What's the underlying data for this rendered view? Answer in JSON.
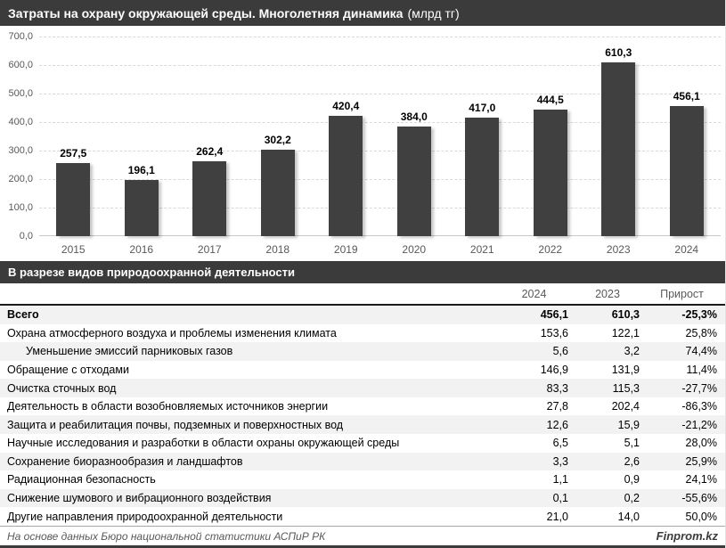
{
  "header": {
    "title_bold": "Затраты на охрану окружающей среды. Многолетняя динамика",
    "title_unit": "(млрд тг)"
  },
  "chart_data": {
    "type": "bar",
    "title": "Затраты на охрану окружающей среды. Многолетняя динамика (млрд тг)",
    "categories": [
      "2015",
      "2016",
      "2017",
      "2018",
      "2019",
      "2020",
      "2021",
      "2022",
      "2023",
      "2024"
    ],
    "values": [
      257.5,
      196.1,
      262.4,
      302.2,
      420.4,
      384.0,
      417.0,
      444.5,
      610.3,
      456.1
    ],
    "value_labels": [
      "257,5",
      "196,1",
      "262,4",
      "302,2",
      "420,4",
      "384,0",
      "417,0",
      "444,5",
      "610,3",
      "456,1"
    ],
    "ylim": [
      0,
      700
    ],
    "ytick_step": 100,
    "ytick_labels_top_to_bottom": [
      "700,0",
      "600,0",
      "500,0",
      "400,0",
      "300,0",
      "200,0",
      "100,0",
      "0,0"
    ],
    "grid": true,
    "legend": "none",
    "xlabel": "",
    "ylabel": ""
  },
  "section2": {
    "title": "В разрезе видов природоохранной деятельности"
  },
  "table": {
    "columns": [
      "2024",
      "2023",
      "Прирост"
    ],
    "rows": [
      {
        "label": "Всего",
        "v2024": "456,1",
        "v2023": "610,3",
        "growth": "-25,3%",
        "bold": true,
        "indent": false
      },
      {
        "label": "Охрана атмосферного воздуха и проблемы изменения климата",
        "v2024": "153,6",
        "v2023": "122,1",
        "growth": "25,8%",
        "bold": false,
        "indent": false
      },
      {
        "label": "Уменьшение эмиссий парниковых газов",
        "v2024": "5,6",
        "v2023": "3,2",
        "growth": "74,4%",
        "bold": false,
        "indent": true
      },
      {
        "label": "Обращение с отходами",
        "v2024": "146,9",
        "v2023": "131,9",
        "growth": "11,4%",
        "bold": false,
        "indent": false
      },
      {
        "label": "Очистка сточных вод",
        "v2024": "83,3",
        "v2023": "115,3",
        "growth": "-27,7%",
        "bold": false,
        "indent": false
      },
      {
        "label": "Деятельность в области возобновляемых источников энергии",
        "v2024": "27,8",
        "v2023": "202,4",
        "growth": "-86,3%",
        "bold": false,
        "indent": false
      },
      {
        "label": "Защита и реабилитация почвы, подземных и поверхностных вод",
        "v2024": "12,6",
        "v2023": "15,9",
        "growth": "-21,2%",
        "bold": false,
        "indent": false
      },
      {
        "label": "Научные исследования и разработки в области охраны окружающей среды",
        "v2024": "6,5",
        "v2023": "5,1",
        "growth": "28,0%",
        "bold": false,
        "indent": false
      },
      {
        "label": "Сохранение биоразнообразия и ландшафтов",
        "v2024": "3,3",
        "v2023": "2,6",
        "growth": "25,9%",
        "bold": false,
        "indent": false
      },
      {
        "label": "Радиационная безопасность",
        "v2024": "1,1",
        "v2023": "0,9",
        "growth": "24,1%",
        "bold": false,
        "indent": false
      },
      {
        "label": "Снижение шумового и вибрационного воздействия",
        "v2024": "0,1",
        "v2023": "0,2",
        "growth": "-55,6%",
        "bold": false,
        "indent": false
      },
      {
        "label": "Другие направления природоохранной деятельности",
        "v2024": "21,0",
        "v2023": "14,0",
        "growth": "50,0%",
        "bold": false,
        "indent": false
      }
    ]
  },
  "footer": {
    "source": "На основе данных Бюро национальной статистики АСПиР РК",
    "brand": "Finprom.kz"
  },
  "colors": {
    "header_bg": "#3b3b3b",
    "bar": "#404040",
    "row_stripe": "#f2f2f2",
    "axis_text": "#595959",
    "gridline": "#d9d9d9"
  }
}
